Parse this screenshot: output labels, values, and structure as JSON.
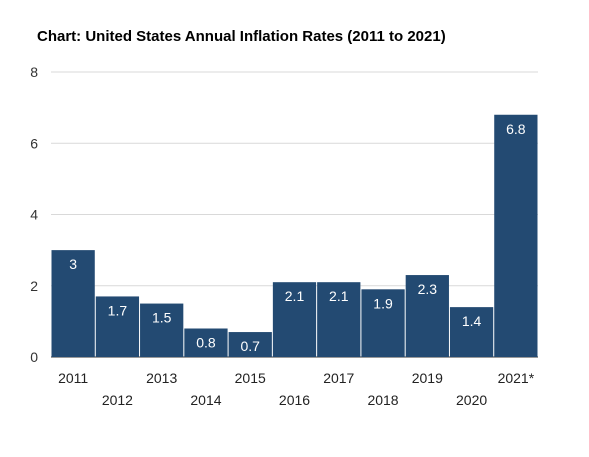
{
  "colors": {
    "bar": "#234a72",
    "grid": "#d9d9d9",
    "axis": "#333333"
  },
  "chart_data": {
    "type": "bar",
    "title": "Chart: United States Annual Inflation Rates (2011 to 2021)",
    "categories": [
      "2011",
      "2012",
      "2013",
      "2014",
      "2015",
      "2016",
      "2017",
      "2018",
      "2019",
      "2020",
      "2021*"
    ],
    "values": [
      3,
      1.7,
      1.5,
      0.8,
      0.7,
      2.1,
      2.1,
      1.9,
      2.3,
      1.4,
      6.8
    ],
    "data_labels": [
      "3",
      "1.7",
      "1.5",
      "0.8",
      "0.7",
      "2.1",
      "2.1",
      "1.9",
      "2.3",
      "1.4",
      "6.8"
    ],
    "y_ticks": [
      "0",
      "2",
      "4",
      "6",
      "8"
    ],
    "ylim": [
      0,
      8
    ],
    "grid": true,
    "legend": "none",
    "xlabel": "",
    "ylabel": ""
  }
}
